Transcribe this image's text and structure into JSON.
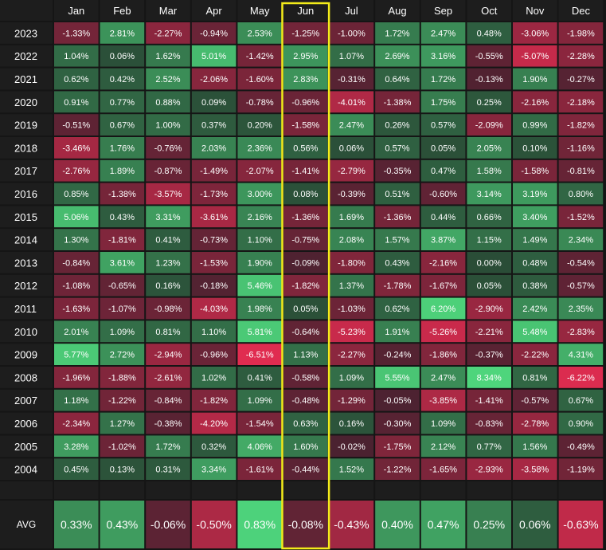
{
  "chart_data": {
    "type": "heatmap",
    "columns": [
      "Jan",
      "Feb",
      "Mar",
      "Apr",
      "May",
      "Jun",
      "Jul",
      "Aug",
      "Sep",
      "Oct",
      "Nov",
      "Dec"
    ],
    "rows": [
      "2023",
      "2022",
      "2021",
      "2020",
      "2019",
      "2018",
      "2017",
      "2016",
      "2015",
      "2014",
      "2013",
      "2012",
      "2011",
      "2010",
      "2009",
      "2008",
      "2007",
      "2006",
      "2005",
      "2004"
    ],
    "values": [
      [
        -1.33,
        2.81,
        -2.27,
        -0.94,
        2.53,
        -1.25,
        -1.0,
        1.72,
        2.47,
        0.48,
        -3.06,
        -1.98
      ],
      [
        1.04,
        0.06,
        1.62,
        5.01,
        -1.42,
        2.95,
        1.07,
        2.69,
        3.16,
        -0.55,
        -5.07,
        -2.28
      ],
      [
        0.62,
        0.42,
        2.52,
        -2.06,
        -1.6,
        2.83,
        -0.31,
        0.64,
        1.72,
        -0.13,
        1.9,
        -0.27
      ],
      [
        0.91,
        0.77,
        0.88,
        0.09,
        -0.78,
        -0.96,
        -4.01,
        -1.38,
        1.75,
        0.25,
        -2.16,
        -2.18
      ],
      [
        -0.51,
        0.67,
        1.0,
        0.37,
        0.2,
        -1.58,
        2.47,
        0.26,
        0.57,
        -2.09,
        0.99,
        -1.82
      ],
      [
        -3.46,
        1.76,
        -0.76,
        2.03,
        2.36,
        0.56,
        0.06,
        0.57,
        0.05,
        2.05,
        0.1,
        -1.16
      ],
      [
        -2.76,
        1.89,
        -0.87,
        -1.49,
        -2.07,
        -1.41,
        -2.79,
        -0.35,
        0.47,
        1.58,
        -1.58,
        -0.81
      ],
      [
        0.85,
        -1.38,
        -3.57,
        -1.73,
        3.0,
        0.08,
        -0.39,
        0.51,
        -0.6,
        3.14,
        3.19,
        0.8
      ],
      [
        5.06,
        0.43,
        3.31,
        -3.61,
        2.16,
        -1.36,
        1.69,
        -1.36,
        0.44,
        0.66,
        3.4,
        -1.52
      ],
      [
        1.3,
        -1.81,
        0.41,
        -0.73,
        1.1,
        -0.75,
        2.08,
        1.57,
        3.87,
        1.15,
        1.49,
        2.34
      ],
      [
        -0.84,
        3.61,
        1.23,
        -1.53,
        1.9,
        -0.09,
        -1.8,
        0.43,
        -2.16,
        0.0,
        0.48,
        -0.54
      ],
      [
        -1.08,
        -0.65,
        0.16,
        -0.18,
        5.46,
        -1.82,
        1.37,
        -1.78,
        -1.67,
        0.05,
        0.38,
        -0.57
      ],
      [
        -1.63,
        -1.07,
        -0.98,
        -4.03,
        1.98,
        0.05,
        -1.03,
        0.62,
        6.2,
        -2.9,
        2.42,
        2.35
      ],
      [
        2.01,
        1.09,
        0.81,
        1.1,
        5.81,
        -0.64,
        -5.23,
        1.91,
        -5.26,
        -2.21,
        5.48,
        -2.83
      ],
      [
        5.77,
        2.72,
        -2.94,
        -0.96,
        -6.51,
        1.13,
        -2.27,
        -0.24,
        -1.86,
        -0.37,
        -2.22,
        4.31
      ],
      [
        -1.96,
        -1.88,
        -2.61,
        1.02,
        0.41,
        -0.58,
        1.09,
        5.55,
        2.47,
        8.34,
        0.81,
        -6.22
      ],
      [
        1.18,
        -1.22,
        -0.84,
        -1.82,
        1.09,
        -0.48,
        -1.29,
        -0.05,
        -3.85,
        -1.41,
        -0.57,
        0.67
      ],
      [
        -2.34,
        1.27,
        -0.38,
        -4.2,
        -1.54,
        0.63,
        0.16,
        -0.3,
        1.09,
        -0.83,
        -2.78,
        0.9
      ],
      [
        3.28,
        -1.02,
        1.72,
        0.32,
        4.06,
        1.6,
        -0.02,
        -1.75,
        2.12,
        0.77,
        1.56,
        -0.49
      ],
      [
        0.45,
        0.13,
        0.31,
        3.34,
        -1.61,
        -0.44,
        1.52,
        -1.22,
        -1.65,
        -2.93,
        -3.58,
        -1.19
      ]
    ],
    "value_format": "percent",
    "avg_label": "AVG",
    "avg_values": [
      0.33,
      0.43,
      -0.06,
      -0.5,
      0.83,
      -0.08,
      -0.43,
      0.4,
      0.47,
      0.25,
      0.06,
      -0.63
    ],
    "highlighted_column": "Jun",
    "colors": {
      "background": "#151515",
      "label_cell": "#1d1d1d",
      "text": "#ffffff",
      "highlight_border": "#f4ec1a",
      "positive_low": "#2a4d37",
      "positive_high": "#4ed57c",
      "negative_low": "#4a2230",
      "negative_high": "#e02c50"
    }
  }
}
